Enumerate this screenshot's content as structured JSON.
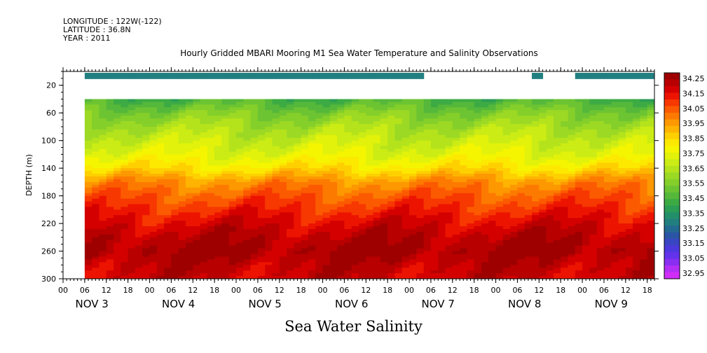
{
  "header": {
    "longitude": "LONGITUDE : 122W(-122)",
    "latitude": "LATITUDE : 36.8N",
    "year": "YEAR : 2011"
  },
  "chart_data": {
    "type": "heatmap",
    "title": "Hourly Gridded MBARI Mooring M1 Sea Water Temperature and Salinity Observations",
    "bottom_title": "Sea Water Salinity",
    "ylabel": "DEPTH (m)",
    "xlabel": "",
    "ylim": [
      300,
      0
    ],
    "yticks": [
      20,
      60,
      100,
      140,
      180,
      220,
      260,
      300
    ],
    "x_hour_labels": [
      "00",
      "06",
      "12",
      "18",
      "00",
      "06",
      "12",
      "18",
      "00",
      "06",
      "12",
      "18",
      "00",
      "06",
      "12",
      "18",
      "00",
      "06",
      "12",
      "18",
      "00",
      "06",
      "12",
      "18",
      "00",
      "06",
      "12",
      "18"
    ],
    "x_day_labels": [
      "NOV  3",
      "NOV  4",
      "NOV  5",
      "NOV  6",
      "NOV  7",
      "NOV  8",
      "NOV  9"
    ],
    "x_range_hours": [
      0,
      164
    ],
    "data_start_hour": 6,
    "surface_gaps_hours": [
      [
        100,
        130
      ],
      [
        132.5,
        142
      ]
    ],
    "deep_data_top_depth": 40,
    "colorbar": {
      "labels": [
        "34.25",
        "34.15",
        "34.05",
        "33.95",
        "33.85",
        "33.75",
        "33.65",
        "33.55",
        "33.45",
        "33.35",
        "33.25",
        "33.15",
        "33.05",
        "32.95"
      ],
      "colors": [
        "#9e0000",
        "#b80000",
        "#d40000",
        "#ec1400",
        "#f73800",
        "#fc5a00",
        "#fd7a00",
        "#fd9800",
        "#feb400",
        "#fed000",
        "#fde800",
        "#f5f500",
        "#e2f20a",
        "#cbec14",
        "#b4e31c",
        "#9cd924",
        "#85cf2a",
        "#6dc432",
        "#55b83a",
        "#3dab44",
        "#2b9d55",
        "#238f6a",
        "#217f80",
        "#236a92",
        "#2a55a5",
        "#3a45c4",
        "#4c38dc",
        "#6333ec",
        "#8a2ef2",
        "#b22ef5",
        "#d02ef8"
      ]
    },
    "depth_profile": [
      {
        "depth": 40,
        "value": 33.45
      },
      {
        "depth": 60,
        "value": 33.55
      },
      {
        "depth": 80,
        "value": 33.62
      },
      {
        "depth": 100,
        "value": 33.68
      },
      {
        "depth": 120,
        "value": 33.73
      },
      {
        "depth": 140,
        "value": 33.82
      },
      {
        "depth": 160,
        "value": 33.95
      },
      {
        "depth": 180,
        "value": 34.02
      },
      {
        "depth": 200,
        "value": 34.08
      },
      {
        "depth": 220,
        "value": 34.14
      },
      {
        "depth": 240,
        "value": 34.19
      },
      {
        "depth": 260,
        "value": 34.22
      },
      {
        "depth": 280,
        "value": 34.18
      },
      {
        "depth": 300,
        "value": 34.16
      }
    ]
  }
}
